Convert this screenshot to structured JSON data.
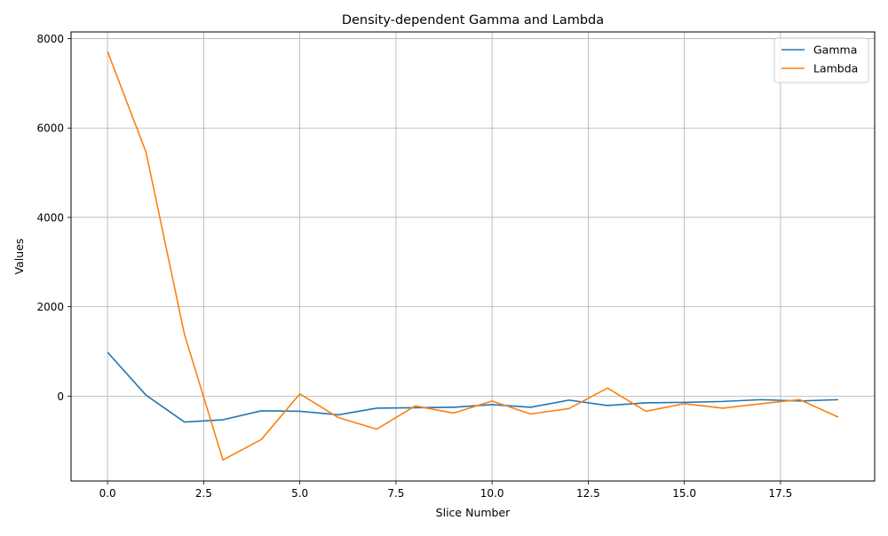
{
  "chart_data": {
    "type": "line",
    "title": "Density-dependent Gamma and Lambda",
    "xlabel": "Slice Number",
    "ylabel": "Values",
    "xlim": [
      -0.95,
      19.95
    ],
    "ylim": [
      -1900,
      8150
    ],
    "xticks": [
      0.0,
      2.5,
      5.0,
      7.5,
      10.0,
      12.5,
      15.0,
      17.5
    ],
    "xtick_labels": [
      "0.0",
      "2.5",
      "5.0",
      "7.5",
      "10.0",
      "12.5",
      "15.0",
      "17.5"
    ],
    "yticks": [
      0,
      2000,
      4000,
      6000,
      8000
    ],
    "ytick_labels": [
      "0",
      "2000",
      "4000",
      "6000",
      "8000"
    ],
    "grid": true,
    "legend_position": "top-right",
    "x": [
      0,
      1,
      2,
      3,
      4,
      5,
      6,
      7,
      8,
      9,
      10,
      11,
      12,
      13,
      14,
      15,
      16,
      17,
      18,
      19
    ],
    "series": [
      {
        "name": "Gamma",
        "color": "#1f77b4",
        "values": [
          980,
          20,
          -580,
          -530,
          -330,
          -340,
          -420,
          -270,
          -260,
          -250,
          -190,
          -250,
          -90,
          -210,
          -150,
          -140,
          -120,
          -80,
          -110,
          -80
        ]
      },
      {
        "name": "Lambda",
        "color": "#ff7f0e",
        "values": [
          7710,
          5460,
          1380,
          -1430,
          -970,
          50,
          -480,
          -740,
          -220,
          -380,
          -110,
          -400,
          -280,
          180,
          -340,
          -170,
          -270,
          -170,
          -80,
          -470
        ]
      }
    ]
  }
}
